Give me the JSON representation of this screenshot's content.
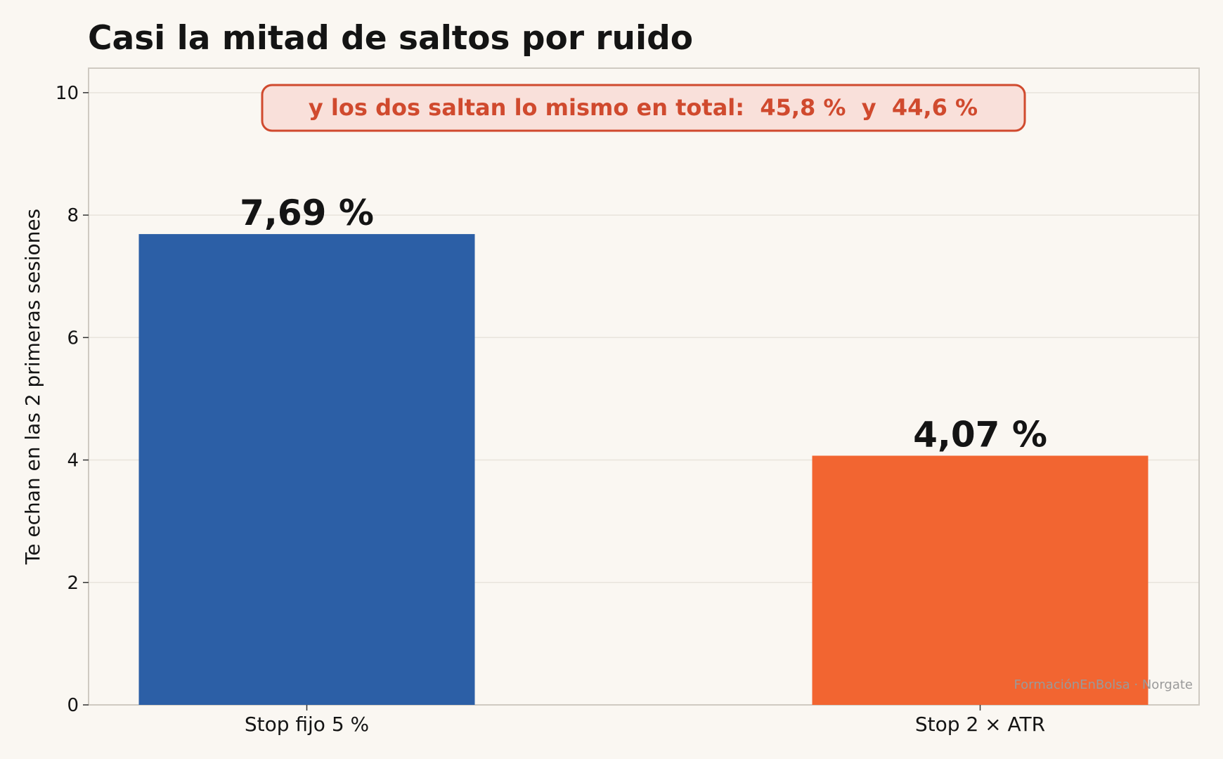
{
  "chart_data": {
    "type": "bar",
    "title": "Casi la mitad de saltos por ruido",
    "ylabel": "Te echan en las 2 primeras sesiones",
    "xlabel": "",
    "categories": [
      "Stop fijo 5 %",
      "Stop 2 × ATR"
    ],
    "values": [
      7.69,
      4.07
    ],
    "value_labels": [
      "7,69 %",
      "4,07 %"
    ],
    "bar_colors": [
      "#2c5fa6",
      "#f26531"
    ],
    "ylim": [
      0,
      10.4
    ],
    "yticks": [
      0,
      2,
      4,
      6,
      8,
      10
    ],
    "ytick_labels": [
      "0",
      "2",
      "4",
      "6",
      "8",
      "10"
    ],
    "grid": true,
    "annotation": "y los dos saltan lo mismo en total:  45,8 %  y  44,6 %",
    "annotation_color": "#d04a2e",
    "source": "FormaciónEnBolsa · Norgate"
  }
}
